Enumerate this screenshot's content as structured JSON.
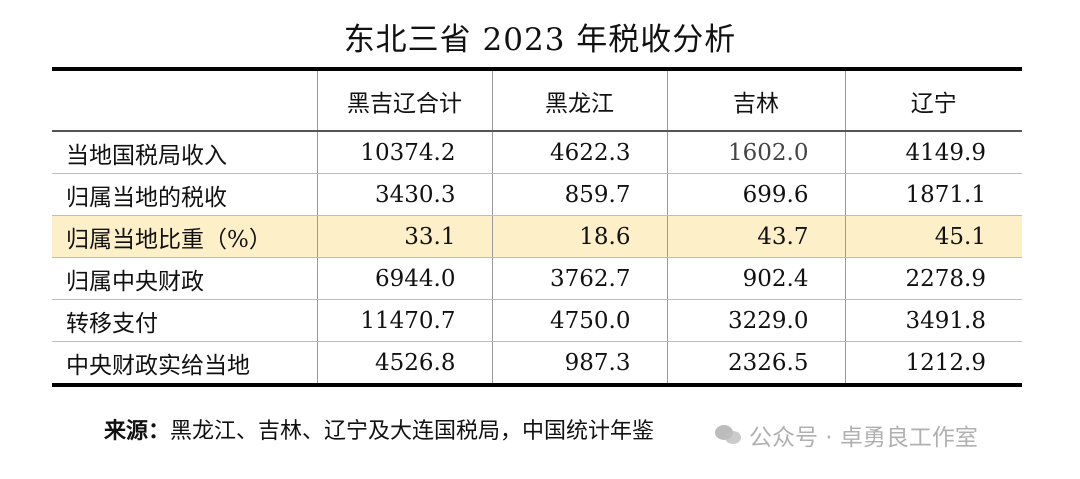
{
  "title": "东北三省 2023 年税收分析",
  "table": {
    "headers": [
      "",
      "黑吉辽合计",
      "黑龙江",
      "吉林",
      "辽宁"
    ],
    "rows": [
      {
        "label": "当地国税局收入",
        "values": [
          "10374.2",
          "4622.3",
          "1602.0",
          "4149.9"
        ]
      },
      {
        "label": "归属当地的税收",
        "values": [
          "3430.3",
          "859.7",
          "699.6",
          "1871.1"
        ]
      },
      {
        "label": "归属当地比重（%）",
        "values": [
          "33.1",
          "18.6",
          "43.7",
          "45.1"
        ]
      },
      {
        "label": "归属中央财政",
        "values": [
          "6944.0",
          "3762.7",
          "902.4",
          "2278.9"
        ]
      },
      {
        "label": "转移支付",
        "values": [
          "11470.7",
          "4750.0",
          "3229.0",
          "3491.8"
        ]
      },
      {
        "label": "中央财政实给当地",
        "values": [
          "4526.8",
          "987.3",
          "2326.5",
          "1212.9"
        ]
      }
    ],
    "highlight_row_color": "#fdf0c8"
  },
  "source": {
    "label": "来源：",
    "text": "黑龙江、吉林、辽宁及大连国税局，中国统计年鉴"
  },
  "watermark": {
    "icon": "wechat-icon",
    "text": "公众号 · 卓勇良工作室"
  }
}
